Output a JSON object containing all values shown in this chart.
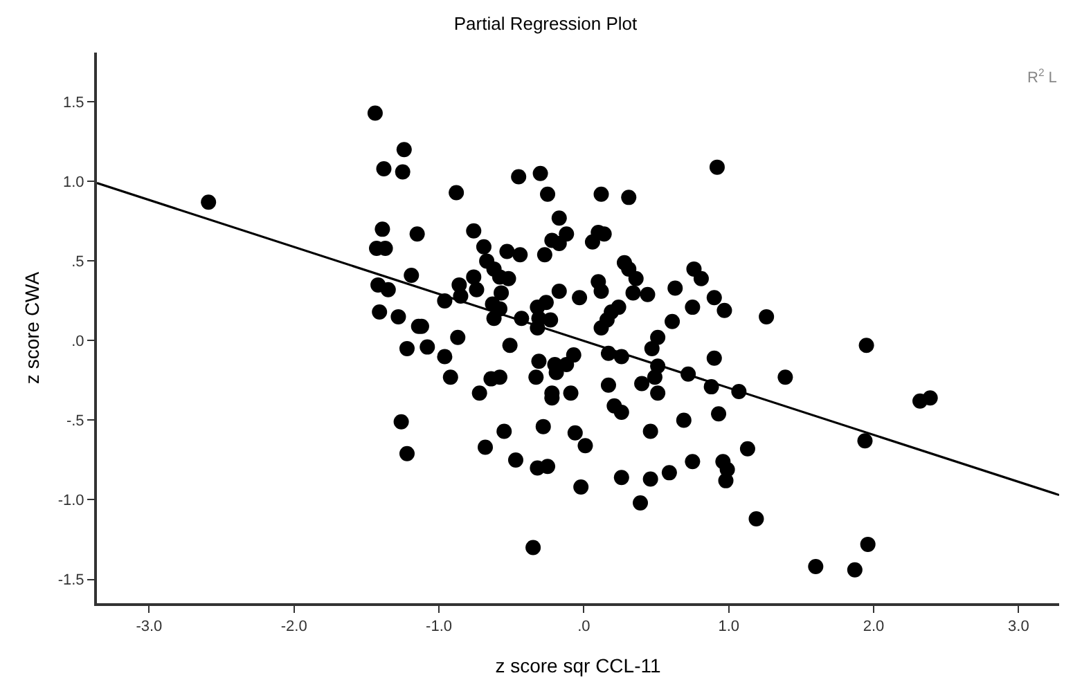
{
  "chart_data": {
    "type": "scatter",
    "title": "Partial Regression Plot",
    "xlabel": "z score sqr CCL-11",
    "ylabel": "z score CWA",
    "annotations": [
      "R$^{2}$ L"
    ],
    "xlim": [
      -3.36,
      3.28
    ],
    "ylim": [
      -1.65,
      1.81
    ],
    "xticks": [
      {
        "value": -3,
        "label": "-3.0"
      },
      {
        "value": -2,
        "label": "-2.0"
      },
      {
        "value": -1,
        "label": "-1.0"
      },
      {
        "value": 0,
        "label": ".0"
      },
      {
        "value": 1,
        "label": "1.0"
      },
      {
        "value": 2,
        "label": "2.0"
      },
      {
        "value": 3,
        "label": "3.0"
      }
    ],
    "yticks": [
      {
        "value": -1.5,
        "label": "-1.5"
      },
      {
        "value": -1,
        "label": "-1.0"
      },
      {
        "value": -0.5,
        "label": "-.5"
      },
      {
        "value": 0,
        "label": ".0"
      },
      {
        "value": 0.5,
        "label": ".5"
      },
      {
        "value": 1,
        "label": "1.0"
      },
      {
        "value": 1.5,
        "label": "1.5"
      }
    ],
    "marker": "circle",
    "series": [
      {
        "color": "#000000",
        "x": [
          -2.59,
          -1.44,
          -1.24,
          -1.38,
          -1.25,
          -1.39,
          -1.15,
          -1.43,
          -1.37,
          -1.19,
          -1.42,
          -1.35,
          -1.41,
          -1.28,
          -1.14,
          -1.22,
          -1.26,
          -1.22,
          -0.45,
          -0.3,
          -0.25,
          -0.88,
          -0.17,
          -0.76,
          -0.69,
          -0.53,
          -0.44,
          -0.27,
          -0.22,
          -0.17,
          -0.12,
          -0.67,
          -0.62,
          -0.58,
          -0.52,
          -0.76,
          -0.86,
          -0.74,
          -0.85,
          -0.96,
          -0.57,
          -0.63,
          -0.58,
          -0.17,
          -0.03,
          -0.26,
          -0.32,
          -0.62,
          -0.43,
          -0.31,
          -0.23,
          -0.32,
          -1.12,
          -0.87,
          -1.08,
          -0.51,
          -0.96,
          -0.07,
          -0.31,
          -0.2,
          -0.12,
          -0.92,
          -0.64,
          -0.58,
          -0.33,
          -0.19,
          -0.22,
          -0.22,
          -0.09,
          -0.72,
          -0.55,
          -0.68,
          -0.28,
          -0.06,
          0.01,
          -0.47,
          -0.32,
          -0.25,
          -0.02,
          -0.35,
          0.92,
          0.12,
          0.31,
          0.1,
          0.14,
          0.06,
          0.28,
          0.31,
          0.36,
          0.1,
          0.12,
          0.34,
          0.44,
          0.76,
          0.81,
          0.63,
          0.9,
          0.97,
          0.75,
          1.26,
          0.24,
          0.19,
          0.16,
          0.12,
          0.61,
          0.51,
          0.47,
          0.17,
          0.26,
          0.9,
          0.51,
          0.49,
          0.72,
          0.88,
          1.07,
          0.17,
          0.4,
          0.51,
          0.21,
          0.26,
          0.69,
          0.93,
          0.46,
          1.13,
          0.75,
          0.96,
          0.99,
          0.98,
          0.59,
          0.46,
          0.26,
          0.39,
          1.19,
          1.95,
          1.39,
          2.32,
          2.39,
          1.94,
          1.96,
          1.6,
          1.87
        ],
        "values": [
          0.87,
          1.43,
          1.2,
          1.08,
          1.06,
          0.7,
          0.67,
          0.58,
          0.58,
          0.41,
          0.35,
          0.32,
          0.18,
          0.15,
          0.09,
          -0.05,
          -0.51,
          -0.71,
          1.03,
          1.05,
          0.92,
          0.93,
          0.77,
          0.69,
          0.59,
          0.56,
          0.54,
          0.54,
          0.63,
          0.61,
          0.67,
          0.5,
          0.45,
          0.4,
          0.39,
          0.4,
          0.35,
          0.32,
          0.28,
          0.25,
          0.3,
          0.23,
          0.2,
          0.31,
          0.27,
          0.24,
          0.21,
          0.14,
          0.14,
          0.14,
          0.13,
          0.08,
          0.09,
          0.02,
          -0.04,
          -0.03,
          -0.1,
          -0.09,
          -0.13,
          -0.15,
          -0.15,
          -0.23,
          -0.24,
          -0.23,
          -0.23,
          -0.2,
          -0.33,
          -0.36,
          -0.33,
          -0.33,
          -0.57,
          -0.67,
          -0.54,
          -0.58,
          -0.66,
          -0.75,
          -0.8,
          -0.79,
          -0.92,
          -1.3,
          1.09,
          0.92,
          0.9,
          0.68,
          0.67,
          0.62,
          0.49,
          0.45,
          0.39,
          0.37,
          0.31,
          0.3,
          0.29,
          0.45,
          0.39,
          0.33,
          0.27,
          0.19,
          0.21,
          0.15,
          0.21,
          0.18,
          0.13,
          0.08,
          0.12,
          0.02,
          -0.05,
          -0.08,
          -0.1,
          -0.11,
          -0.16,
          -0.23,
          -0.21,
          -0.29,
          -0.32,
          -0.28,
          -0.27,
          -0.33,
          -0.41,
          -0.45,
          -0.5,
          -0.46,
          -0.57,
          -0.68,
          -0.76,
          -0.76,
          -0.81,
          -0.88,
          -0.83,
          -0.87,
          -0.86,
          -1.02,
          -1.12,
          -0.03,
          -0.23,
          -0.38,
          -0.36,
          -0.63,
          -1.28,
          -1.42,
          -1.44
        ]
      },
      {
        "type": "line",
        "color": "#000000",
        "marker": "none",
        "line_style": "solid",
        "x": [
          -3.36,
          3.28
        ],
        "values": [
          0.99,
          -0.97
        ]
      }
    ]
  }
}
